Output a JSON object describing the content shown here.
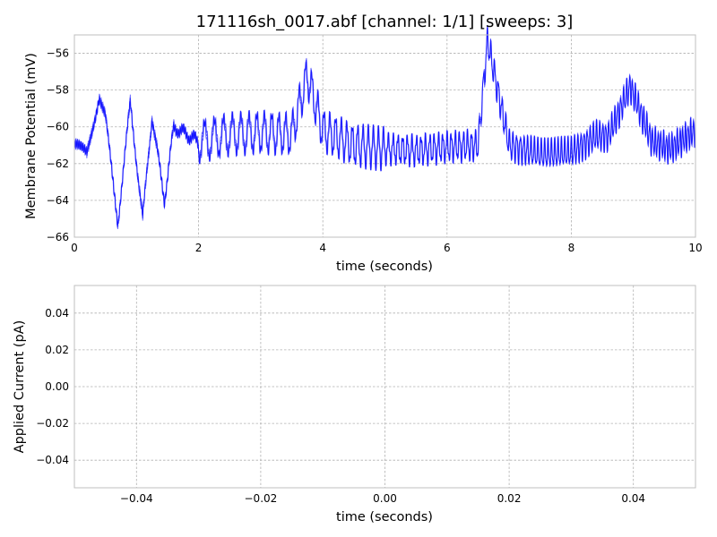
{
  "chart_data": [
    {
      "type": "line",
      "title": "171116sh_0017.abf [channel: 1/1] [sweeps: 3]",
      "xlabel": "time (seconds)",
      "ylabel": "Membrane Potential (mV)",
      "xlim": [
        0,
        10
      ],
      "ylim": [
        -66,
        -55
      ],
      "xticks": [
        0,
        2,
        4,
        6,
        8,
        10
      ],
      "xtick_labels": [
        "0",
        "2",
        "4",
        "6",
        "8",
        "10"
      ],
      "yticks": [
        -56,
        -58,
        -60,
        -62,
        -64,
        -66
      ],
      "ytick_labels": [
        "−56",
        "−58",
        "−60",
        "−62",
        "−64",
        "−66"
      ],
      "grid": true,
      "line_color": "#0000ff",
      "series": [
        {
          "x": [
            0,
            0.2,
            0.4,
            0.5,
            0.7,
            0.9,
            1.1,
            1.25,
            1.45,
            1.6,
            2.0,
            2.5,
            3.0,
            3.5,
            3.75,
            4.0,
            4.5,
            5.0,
            5.5,
            6.0,
            6.5,
            6.65,
            7.0,
            7.5,
            8.0,
            8.4,
            8.6,
            8.95,
            9.3,
            9.6,
            10.0
          ],
          "values": [
            -61.0,
            -61.5,
            -58.3,
            -59.5,
            -65.2,
            -58.7,
            -65.0,
            -59.4,
            -64.0,
            -60.0,
            -60.8,
            -60.4,
            -60.3,
            -60.4,
            -57.2,
            -60.2,
            -61.0,
            -61.2,
            -61.3,
            -61.1,
            -61.0,
            -55.3,
            -61.0,
            -61.5,
            -61.4,
            -60.5,
            -60.5,
            -57.8,
            -60.8,
            -61.2,
            -60.2
          ]
        }
      ]
    },
    {
      "type": "line",
      "title": "",
      "xlabel": "time (seconds)",
      "ylabel": "Applied Current (pA)",
      "xlim": [
        -0.05,
        0.05
      ],
      "ylim": [
        -0.055,
        0.055
      ],
      "xticks": [
        -0.04,
        -0.02,
        0.0,
        0.02,
        0.04
      ],
      "xtick_labels": [
        "−0.04",
        "−0.02",
        "0.00",
        "0.02",
        "0.04"
      ],
      "yticks": [
        0.04,
        0.02,
        0.0,
        -0.02,
        -0.04
      ],
      "ytick_labels": [
        "0.04",
        "0.02",
        "0.00",
        "−0.02",
        "−0.04"
      ],
      "grid": true,
      "series": []
    }
  ]
}
